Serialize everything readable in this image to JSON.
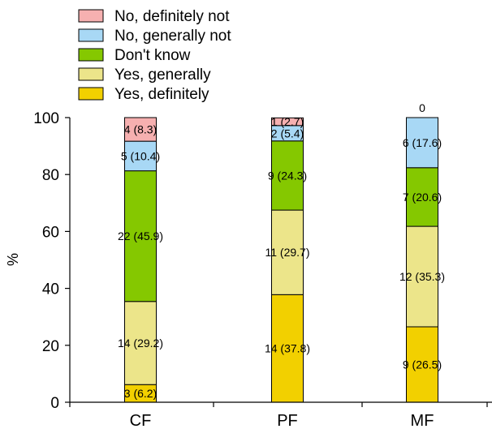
{
  "chart_data": {
    "type": "bar",
    "stacked": true,
    "categories": [
      "CF",
      "PF",
      "MF"
    ],
    "ylabel": "%",
    "xlabel": "",
    "ylim": [
      0,
      100
    ],
    "yticks": [
      0,
      20,
      40,
      60,
      80,
      100
    ],
    "legend_position": "top-left",
    "series": [
      {
        "name": "Yes, definitely",
        "color": "#f2d000",
        "values": [
          6.2,
          37.8,
          26.5
        ],
        "labels": [
          "3 (6.2)",
          "14 (37.8)",
          "9 (26.5)"
        ]
      },
      {
        "name": "Yes, generally",
        "color": "#ece58a",
        "values": [
          29.2,
          29.7,
          35.3
        ],
        "labels": [
          "14 (29.2)",
          "11 (29.7)",
          "12 (35.3)"
        ]
      },
      {
        "name": "Don't know",
        "color": "#85c800",
        "values": [
          45.9,
          24.3,
          20.6
        ],
        "labels": [
          "22 (45.9)",
          "9 (24.3)",
          "7 (20.6)"
        ]
      },
      {
        "name": "No, generally not",
        "color": "#a8d8f5",
        "values": [
          10.4,
          5.4,
          17.6
        ],
        "labels": [
          "5 (10.4)",
          "2 (5.4)",
          "6 (17.6)"
        ]
      },
      {
        "name": "No, definitely not",
        "color": "#f6b0b0",
        "values": [
          8.3,
          2.7,
          0
        ],
        "labels": [
          "4 (8.3)",
          "1 (2.7)",
          "0"
        ]
      }
    ]
  }
}
